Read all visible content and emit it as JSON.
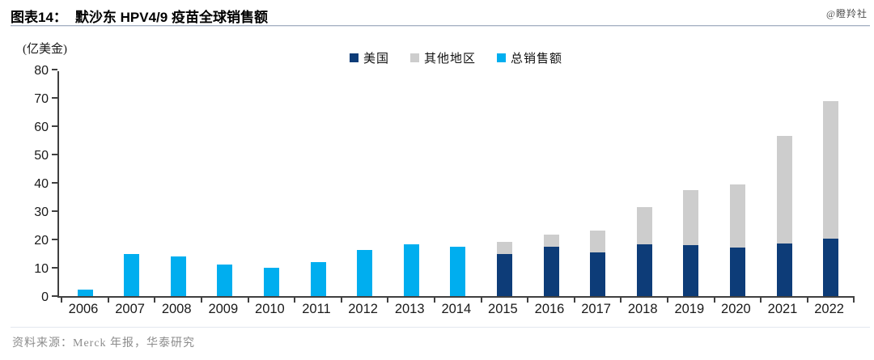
{
  "header": {
    "tag": "图表14：",
    "title": "默沙东 HPV4/9 疫苗全球销售额"
  },
  "watermark": "@瞪羚社",
  "footer": {
    "source": "资料来源：Merck 年报，华泰研究"
  },
  "colors": {
    "us_navy": "#0d3c78",
    "other_gray": "#cdcdcd",
    "total_blue": "#00aeef",
    "axis": "#404040"
  },
  "chart_data": {
    "type": "bar",
    "title": "默沙东 HPV4/9 疫苗全球销售额",
    "unit_label": "(亿美金)",
    "xlabel": "",
    "ylabel": "亿美金",
    "ylim": [
      0,
      80
    ],
    "ystep": 10,
    "grid": false,
    "legend_position": "top-center",
    "stacked": true,
    "categories": [
      "2006",
      "2007",
      "2008",
      "2009",
      "2010",
      "2011",
      "2012",
      "2013",
      "2014",
      "2015",
      "2016",
      "2017",
      "2018",
      "2019",
      "2020",
      "2021",
      "2022"
    ],
    "series": [
      {
        "name": "美国",
        "color": "#0d3c78",
        "values": [
          null,
          null,
          null,
          null,
          null,
          null,
          null,
          null,
          null,
          15.0,
          17.4,
          15.4,
          18.4,
          18.1,
          17.2,
          18.6,
          20.3
        ]
      },
      {
        "name": "其他地区",
        "color": "#cdcdcd",
        "values": [
          null,
          null,
          null,
          null,
          null,
          null,
          null,
          null,
          null,
          4.1,
          4.3,
          7.7,
          13.1,
          19.3,
          22.2,
          38.1,
          48.7
        ]
      },
      {
        "name": "总销售额",
        "color": "#00aeef",
        "values": [
          2.4,
          14.8,
          14.0,
          11.2,
          9.9,
          12.1,
          16.3,
          18.3,
          17.4,
          null,
          null,
          null,
          null,
          null,
          null,
          null,
          null
        ]
      }
    ]
  }
}
